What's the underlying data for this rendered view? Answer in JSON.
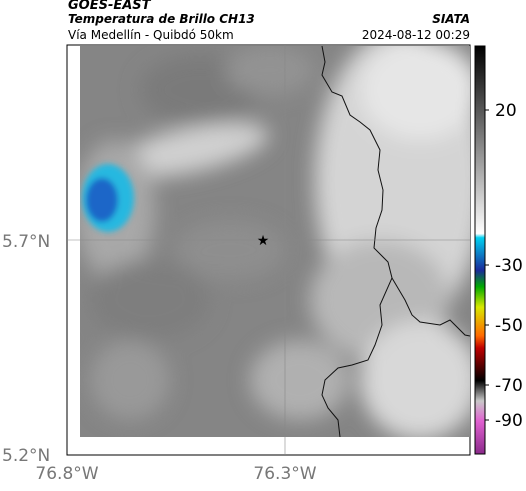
{
  "header": {
    "satellite": "GOES-EAST",
    "product": "Temperatura de Brillo CH13",
    "route": "Vía Medellín - Quibdó 50km",
    "source": "SIATA",
    "timestamp": "2024-08-12 00:29"
  },
  "map": {
    "lat_ticks": [
      "5.7°N",
      "5.2°N"
    ],
    "lon_ticks": [
      "76.8°W",
      "76.3°W"
    ],
    "marker": "star",
    "colors": {
      "cloud_cold": "#1a66c8",
      "cloud_edge": "#1fb4e0",
      "boundary": "#111111"
    }
  },
  "colorbar": {
    "ticks": [
      "20",
      "-30",
      "-50",
      "-70",
      "-90"
    ],
    "units": ""
  }
}
